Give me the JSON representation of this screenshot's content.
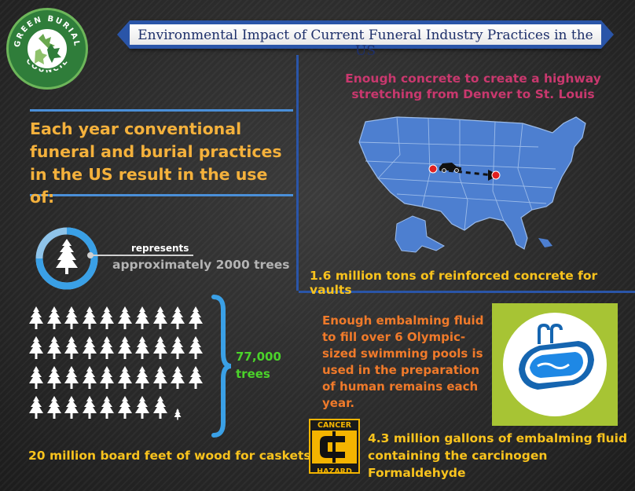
{
  "logo": {
    "arc_top": "GREEN BURIAL",
    "arc_bottom": "COUNCIL"
  },
  "title": "Environmental Impact of Current Funeral Industry Practices in the US",
  "headline": "Each year conventional funeral and burial practices in the US result in the use of:",
  "tree_legend": {
    "represents": "represents",
    "value": "approximately 2000 trees"
  },
  "trees": {
    "count_line1": "77,000",
    "count_line2": "trees",
    "icons_full": 38,
    "icons_partial": 1
  },
  "wood_caption": "20 million board feet of wood for caskets",
  "concrete": {
    "note": "Enough concrete to create a highway stretching from Denver to St. Louis",
    "caption": "1.6 million tons of reinforced concrete for vaults"
  },
  "embalming": {
    "note": "Enough embalming fluid to fill over 6 Olympic-sized swimming pools is used in the preparation of human remains each year.",
    "caption_line1": "4.3 million gallons of embalming fluid",
    "caption_line2": "containing the carcinogen Formaldehyde"
  },
  "hazard": {
    "top": "CANCER",
    "bottom": "HAZARD"
  },
  "colors": {
    "ribbon_blue": "#2a55a8",
    "headline_orange": "#f4b13c",
    "note_magenta": "#c9386e",
    "note_orange": "#f07a2a",
    "caption_yellow": "#f9c31d",
    "count_green": "#4bd32a",
    "map_blue": "#4d7fd0",
    "pool_green": "#a7c434"
  },
  "icons": [
    "logo-leaves",
    "tree-icon",
    "brace",
    "us-map",
    "car-icon",
    "arrow",
    "swimming-pool-icon",
    "cancer-hazard-icon"
  ]
}
